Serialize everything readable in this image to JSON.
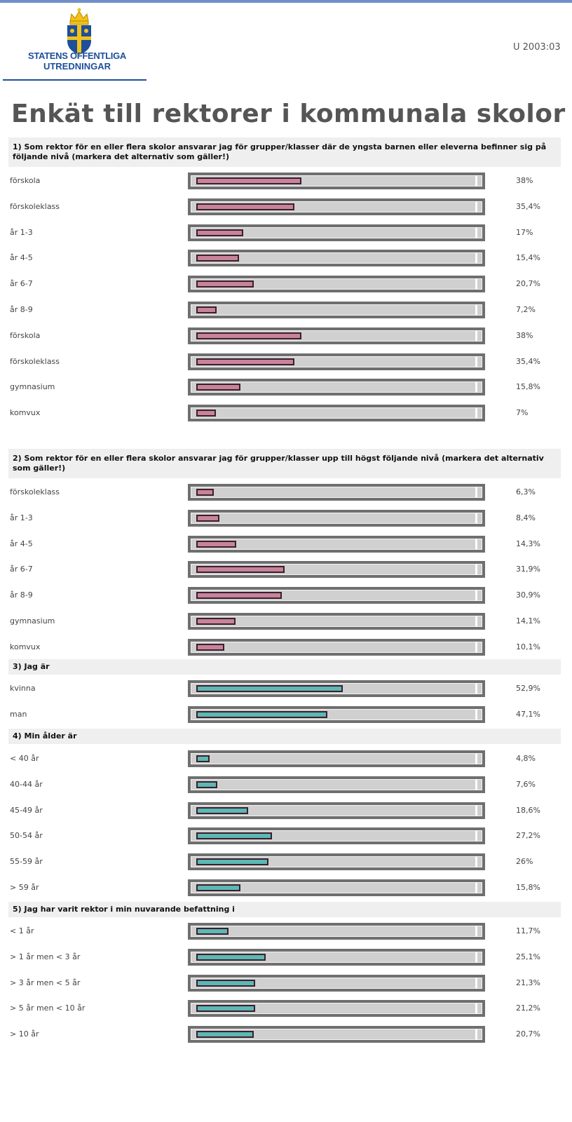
{
  "header": {
    "doc_number": "U 2003:03",
    "logo_line1": "STATENS OFFENTLIGA",
    "logo_line2": "UTREDNINGAR"
  },
  "page_title": "Enkät till rektorer i kommunala skolor",
  "colors": {
    "pink_fill": "#c8839b",
    "teal_fill": "#5cb8b4",
    "bar_frame": "#6f6f6f",
    "bar_track": "#d0d0d0",
    "heading_bg": "#efefef",
    "logo_blue": "#1d4f9a",
    "logo_gold": "#f2c21a"
  },
  "chart_data": [
    {
      "type": "bar",
      "title": "1) Som rektor för en eller flera skolor ansvarar jag för grupper/klasser där de yngsta barnen eller eleverna befinner sig på följande nivå (markera det alternativ som gäller!)",
      "categories": [
        "förskola",
        "förskoleklass",
        "år 1-3",
        "år 4-5",
        "år 6-7",
        "år 8-9",
        "förskola",
        "förskoleklass",
        "gymnasium",
        "komvux"
      ],
      "values": [
        38,
        35.4,
        17,
        15.4,
        20.7,
        7.2,
        38,
        35.4,
        15.8,
        7
      ],
      "labels": [
        "38%",
        "35,4%",
        "17%",
        "15,4%",
        "20,7%",
        "7,2%",
        "38%",
        "35,4%",
        "15,8%",
        "7%"
      ],
      "color": "pink",
      "ylim": [
        0,
        100
      ]
    },
    {
      "type": "bar",
      "title": "2) Som rektor för en eller flera skolor ansvarar jag för grupper/klasser upp till högst följande nivå (markera det alternativ som gäller!)",
      "categories": [
        "förskoleklass",
        "år 1-3",
        "år 4-5",
        "år 6-7",
        "år 8-9",
        "gymnasium",
        "komvux"
      ],
      "values": [
        6.3,
        8.4,
        14.3,
        31.9,
        30.9,
        14.1,
        10.1
      ],
      "labels": [
        "6,3%",
        "8,4%",
        "14,3%",
        "31,9%",
        "30,9%",
        "14,1%",
        "10,1%"
      ],
      "color": "pink",
      "ylim": [
        0,
        100
      ]
    },
    {
      "type": "bar",
      "title": "3) Jag är",
      "categories": [
        "kvinna",
        "man"
      ],
      "values": [
        52.9,
        47.1
      ],
      "labels": [
        "52,9%",
        "47,1%"
      ],
      "color": "teal",
      "ylim": [
        0,
        100
      ]
    },
    {
      "type": "bar",
      "title": "4) Min ålder är",
      "categories": [
        "< 40 år",
        "40-44 år",
        "45-49 år",
        "50-54 år",
        "55-59 år",
        "> 59 år"
      ],
      "values": [
        4.8,
        7.6,
        18.6,
        27.2,
        26,
        15.8
      ],
      "labels": [
        "4,8%",
        "7,6%",
        "18,6%",
        "27,2%",
        "26%",
        "15,8%"
      ],
      "color": "teal",
      "ylim": [
        0,
        100
      ]
    },
    {
      "type": "bar",
      "title": "5) Jag har varit rektor i min nuvarande befattning i",
      "categories": [
        "< 1 år",
        "> 1 år men < 3 år",
        "> 3 år men < 5 år",
        "> 5 år men < 10 år",
        "> 10 år"
      ],
      "values": [
        11.7,
        25.1,
        21.3,
        21.2,
        20.7
      ],
      "labels": [
        "11,7%",
        "25,1%",
        "21,3%",
        "21,2%",
        "20,7%"
      ],
      "color": "teal",
      "ylim": [
        0,
        100
      ]
    }
  ]
}
